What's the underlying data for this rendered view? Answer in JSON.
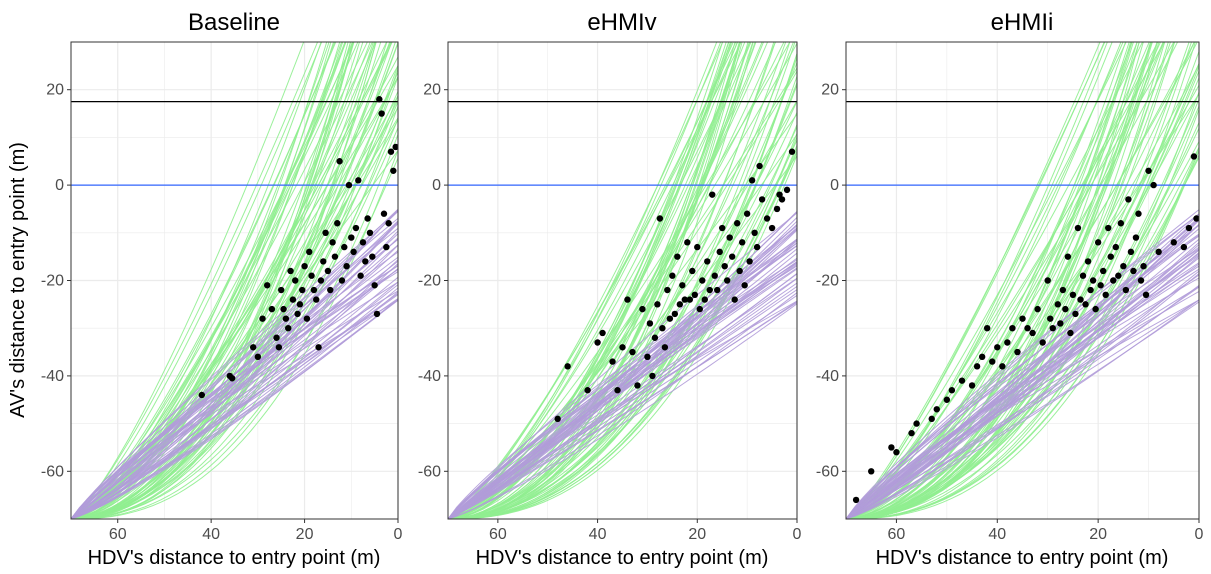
{
  "chart_data": {
    "type": "line",
    "shared": {
      "xlabel": "HDV's distance to entry point (m)",
      "ylabel": "AV's distance to entry point (m)",
      "xlim": [
        70,
        0
      ],
      "ylim": [
        -70,
        30
      ],
      "x_ticks": [
        60,
        40,
        20,
        0
      ],
      "y_ticks": [
        20,
        0,
        -20,
        -40,
        -60
      ],
      "grid": true,
      "hlines": [
        {
          "y": 17.5,
          "color": "#000000"
        },
        {
          "y": 0,
          "color": "#3366ff"
        }
      ],
      "colors": {
        "green_curves": "#90ee90",
        "purple_curves": "#b19cd9",
        "points": "#000000",
        "panel_border": "#333333",
        "grid": "#ebebeb"
      }
    },
    "panels": [
      {
        "title": "Baseline",
        "points": [
          [
            42,
            -44
          ],
          [
            36,
            -40
          ],
          [
            35.5,
            -40.5
          ],
          [
            31,
            -34
          ],
          [
            30,
            -36
          ],
          [
            29,
            -28
          ],
          [
            28,
            -21
          ],
          [
            27,
            -26
          ],
          [
            26,
            -32
          ],
          [
            25.5,
            -34
          ],
          [
            25,
            -22
          ],
          [
            24.5,
            -26
          ],
          [
            24,
            -28
          ],
          [
            23.5,
            -30
          ],
          [
            23,
            -18
          ],
          [
            22.5,
            -24
          ],
          [
            22,
            -20
          ],
          [
            21.5,
            -27
          ],
          [
            21,
            -25
          ],
          [
            20.5,
            -22
          ],
          [
            20,
            -17
          ],
          [
            19.5,
            -28
          ],
          [
            19,
            -14
          ],
          [
            18.5,
            -19
          ],
          [
            18,
            -22
          ],
          [
            17.5,
            -24
          ],
          [
            17,
            -34
          ],
          [
            16.5,
            -20
          ],
          [
            16,
            -16
          ],
          [
            15.5,
            -10
          ],
          [
            15,
            -18
          ],
          [
            14.5,
            -22
          ],
          [
            14,
            -12
          ],
          [
            13.5,
            -15
          ],
          [
            13,
            -8
          ],
          [
            12.5,
            5
          ],
          [
            12,
            -20
          ],
          [
            11.5,
            -13
          ],
          [
            11,
            -17
          ],
          [
            10.5,
            0
          ],
          [
            10,
            -11
          ],
          [
            9.5,
            -14
          ],
          [
            9,
            -9
          ],
          [
            8.5,
            1
          ],
          [
            8,
            -19
          ],
          [
            7.5,
            -12
          ],
          [
            7,
            -16
          ],
          [
            6.5,
            -7
          ],
          [
            6,
            -10
          ],
          [
            5.5,
            -15
          ],
          [
            5,
            -21
          ],
          [
            4.5,
            -27
          ],
          [
            4,
            18
          ],
          [
            3.5,
            15
          ],
          [
            3,
            -6
          ],
          [
            2.5,
            -13
          ],
          [
            2,
            -8
          ],
          [
            1.5,
            7
          ],
          [
            1,
            3
          ],
          [
            0.5,
            8
          ]
        ]
      },
      {
        "title": "eHMIv",
        "points": [
          [
            48,
            -49
          ],
          [
            46,
            -38
          ],
          [
            42,
            -43
          ],
          [
            40,
            -33
          ],
          [
            39,
            -31
          ],
          [
            37,
            -37
          ],
          [
            36,
            -43
          ],
          [
            35,
            -34
          ],
          [
            34,
            -24
          ],
          [
            33,
            -35
          ],
          [
            32,
            -42
          ],
          [
            31,
            -26
          ],
          [
            30,
            -36
          ],
          [
            29.5,
            -29
          ],
          [
            29,
            -40
          ],
          [
            28.5,
            -32
          ],
          [
            28,
            -25
          ],
          [
            27.5,
            -7
          ],
          [
            27,
            -30
          ],
          [
            26.5,
            -34
          ],
          [
            26,
            -22
          ],
          [
            25.5,
            -28
          ],
          [
            25,
            -19
          ],
          [
            24.5,
            -27
          ],
          [
            24,
            -15
          ],
          [
            23.5,
            -25
          ],
          [
            23,
            -21
          ],
          [
            22.5,
            -24
          ],
          [
            22,
            -12
          ],
          [
            21.5,
            -24
          ],
          [
            21,
            -18
          ],
          [
            20.5,
            -23
          ],
          [
            20,
            -13
          ],
          [
            19.5,
            -26
          ],
          [
            19,
            -20
          ],
          [
            18.5,
            -24
          ],
          [
            18,
            -16
          ],
          [
            17.5,
            -22
          ],
          [
            17,
            -2
          ],
          [
            16.5,
            -19
          ],
          [
            16,
            -22
          ],
          [
            15.5,
            -14
          ],
          [
            15,
            -9
          ],
          [
            14.5,
            -17
          ],
          [
            14,
            -20
          ],
          [
            13.5,
            -11
          ],
          [
            13,
            -15
          ],
          [
            12.5,
            -24
          ],
          [
            12,
            -8
          ],
          [
            11.5,
            -18
          ],
          [
            11,
            -12
          ],
          [
            10.5,
            -21
          ],
          [
            10,
            -6
          ],
          [
            9.5,
            -16
          ],
          [
            9,
            1
          ],
          [
            8.5,
            -10
          ],
          [
            8,
            -13
          ],
          [
            7.5,
            4
          ],
          [
            7,
            -3
          ],
          [
            6,
            -7
          ],
          [
            5,
            -9
          ],
          [
            4,
            -5
          ],
          [
            3.5,
            -2
          ],
          [
            3,
            -3
          ],
          [
            2,
            -1
          ],
          [
            1,
            7
          ]
        ]
      },
      {
        "title": "eHMIi",
        "points": [
          [
            68,
            -66
          ],
          [
            65,
            -60
          ],
          [
            61,
            -55
          ],
          [
            60,
            -56
          ],
          [
            57,
            -52
          ],
          [
            56,
            -50
          ],
          [
            53,
            -49
          ],
          [
            52,
            -47
          ],
          [
            50,
            -45
          ],
          [
            49,
            -43
          ],
          [
            47,
            -41
          ],
          [
            45,
            -42
          ],
          [
            44,
            -38
          ],
          [
            43,
            -36
          ],
          [
            42,
            -30
          ],
          [
            41,
            -37
          ],
          [
            40,
            -34
          ],
          [
            39,
            -38
          ],
          [
            38,
            -33
          ],
          [
            37,
            -30
          ],
          [
            36,
            -35
          ],
          [
            35,
            -28
          ],
          [
            34,
            -30
          ],
          [
            33,
            -31
          ],
          [
            32,
            -26
          ],
          [
            31,
            -33
          ],
          [
            30,
            -20
          ],
          [
            29.5,
            -28
          ],
          [
            29,
            -30
          ],
          [
            28,
            -25
          ],
          [
            27.5,
            -29
          ],
          [
            27,
            -22
          ],
          [
            26.5,
            -26
          ],
          [
            26,
            -15
          ],
          [
            25.5,
            -31
          ],
          [
            25,
            -23
          ],
          [
            24.5,
            -27
          ],
          [
            24,
            -9
          ],
          [
            23.5,
            -24
          ],
          [
            23,
            -19
          ],
          [
            22.5,
            -25
          ],
          [
            22,
            -16
          ],
          [
            21.5,
            -22
          ],
          [
            21,
            -20
          ],
          [
            20.5,
            -26
          ],
          [
            20,
            -12
          ],
          [
            19.5,
            -21
          ],
          [
            19,
            -18
          ],
          [
            18.5,
            -23
          ],
          [
            18,
            -9
          ],
          [
            17.5,
            -15
          ],
          [
            17,
            -20
          ],
          [
            16.5,
            -13
          ],
          [
            16,
            -19
          ],
          [
            15.5,
            -8
          ],
          [
            15,
            -17
          ],
          [
            14.5,
            -22
          ],
          [
            14,
            -3
          ],
          [
            13.5,
            -14
          ],
          [
            13,
            -18
          ],
          [
            12.5,
            -11
          ],
          [
            12,
            -6
          ],
          [
            11.5,
            -20
          ],
          [
            11,
            -17
          ],
          [
            10.5,
            -23
          ],
          [
            10,
            3
          ],
          [
            9,
            0
          ],
          [
            8,
            -14
          ],
          [
            5,
            -12
          ],
          [
            3,
            -13
          ],
          [
            2,
            -9
          ],
          [
            1,
            6
          ],
          [
            0.5,
            -7
          ]
        ]
      }
    ]
  }
}
